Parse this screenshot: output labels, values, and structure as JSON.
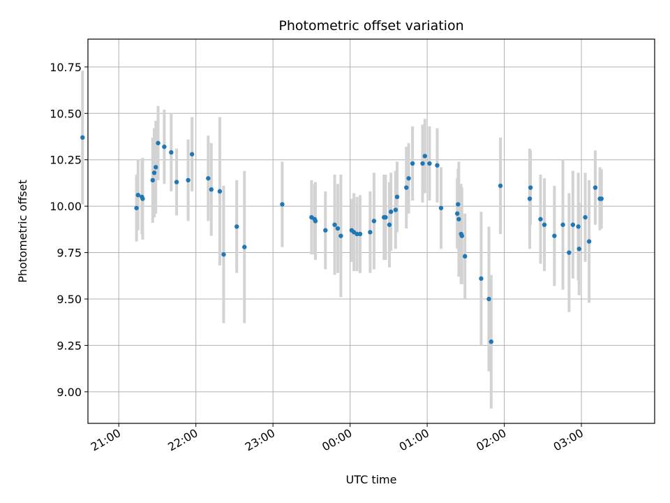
{
  "chart_data": {
    "type": "scatter",
    "title": "Photometric offset variation",
    "xlabel": "UTC time",
    "ylabel": "Photometric offset",
    "grid": true,
    "xlim": [
      20.6,
      27.95
    ],
    "ylim": [
      8.83,
      10.9
    ],
    "x_ticks": [
      21,
      22,
      23,
      24,
      25,
      26,
      27
    ],
    "x_tick_labels": [
      "21:00",
      "22:00",
      "23:00",
      "00:00",
      "01:00",
      "02:00",
      "03:00"
    ],
    "y_ticks": [
      9.0,
      9.25,
      9.5,
      9.75,
      10.0,
      10.25,
      10.5,
      10.75
    ],
    "y_tick_labels": [
      "9.00",
      "9.25",
      "9.50",
      "9.75",
      "10.00",
      "10.25",
      "10.50",
      "10.75"
    ],
    "colors": {
      "point": "#1f77b4",
      "errorbar": "#d3d3d3",
      "grid": "#b0b0b0"
    },
    "series": [
      {
        "x": [
          20.53,
          21.23,
          21.25,
          21.3,
          21.31,
          21.44,
          21.46,
          21.48,
          21.51,
          21.59,
          21.68,
          21.75,
          21.9,
          21.95,
          22.16,
          22.2,
          22.31,
          22.36,
          22.53,
          22.63,
          23.12,
          23.5,
          23.54,
          23.55,
          23.68,
          23.8,
          23.84,
          23.88,
          24.02,
          24.05,
          24.09,
          24.13,
          24.26,
          24.31,
          24.44,
          24.46,
          24.51,
          24.53,
          24.59,
          24.61,
          24.73,
          24.76,
          24.81,
          24.94,
          24.97,
          25.03,
          25.13,
          25.18,
          25.39,
          25.4,
          25.41,
          25.44,
          25.45,
          25.49,
          25.7,
          25.8,
          25.83,
          25.95,
          26.33,
          26.34,
          26.47,
          26.52,
          26.65,
          26.76,
          26.84,
          26.89,
          26.96,
          26.97,
          27.05,
          27.1,
          27.18,
          27.24,
          27.26
        ],
        "y": [
          10.37,
          9.99,
          10.06,
          10.05,
          10.04,
          10.14,
          10.18,
          10.21,
          10.34,
          10.32,
          10.29,
          10.13,
          10.14,
          10.28,
          10.15,
          10.09,
          10.08,
          9.74,
          9.89,
          9.78,
          10.01,
          9.94,
          9.93,
          9.92,
          9.87,
          9.9,
          9.88,
          9.84,
          9.87,
          9.86,
          9.85,
          9.85,
          9.86,
          9.92,
          9.94,
          9.94,
          9.9,
          9.97,
          9.98,
          10.05,
          10.1,
          10.15,
          10.23,
          10.23,
          10.27,
          10.23,
          10.22,
          9.99,
          9.96,
          10.01,
          9.93,
          9.85,
          9.84,
          9.73,
          9.61,
          9.5,
          9.27,
          10.11,
          10.04,
          10.1,
          9.93,
          9.9,
          9.84,
          9.9,
          9.75,
          9.9,
          9.89,
          9.77,
          9.94,
          9.81,
          10.1,
          10.04,
          10.04
        ],
        "yerr": [
          0.36,
          0.18,
          0.19,
          0.2,
          0.22,
          0.23,
          0.24,
          0.25,
          0.2,
          0.2,
          0.21,
          0.18,
          0.22,
          0.2,
          0.23,
          0.25,
          0.4,
          0.37,
          0.25,
          0.41,
          0.23,
          0.2,
          0.19,
          0.21,
          0.21,
          0.27,
          0.24,
          0.33,
          0.17,
          0.21,
          0.2,
          0.21,
          0.22,
          0.26,
          0.23,
          0.23,
          0.23,
          0.21,
          0.21,
          0.19,
          0.22,
          0.19,
          0.2,
          0.21,
          0.2,
          0.2,
          0.2,
          0.22,
          0.19,
          0.19,
          0.31,
          0.27,
          0.26,
          0.23,
          0.36,
          0.39,
          0.36,
          0.26,
          0.27,
          0.2,
          0.24,
          0.25,
          0.27,
          0.35,
          0.32,
          0.29,
          0.29,
          0.25,
          0.24,
          0.33,
          0.2,
          0.17,
          0.16
        ]
      }
    ]
  }
}
